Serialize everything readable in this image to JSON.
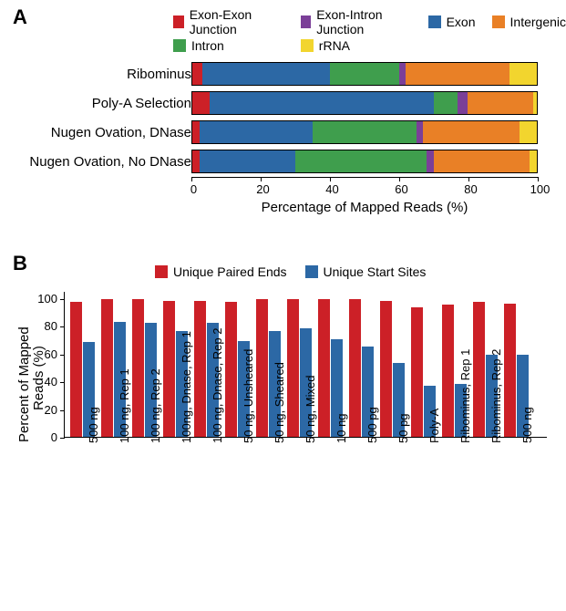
{
  "panelA": {
    "label": "A",
    "legend": [
      {
        "name": "Exon-Exon Junction",
        "color": "#cc2027"
      },
      {
        "name": "Exon-Intron Junction",
        "color": "#7b3f98"
      },
      {
        "name": "Exon",
        "color": "#2c68a5"
      },
      {
        "name": "Intergenic",
        "color": "#e98026"
      },
      {
        "name": "Intron",
        "color": "#3f9e4d"
      },
      {
        "name": "rRNA",
        "color": "#f2d52e"
      }
    ],
    "rows": [
      {
        "label": "Ribominus",
        "segments": [
          3,
          37,
          20,
          2,
          30,
          8
        ]
      },
      {
        "label": "Poly-A Selection",
        "segments": [
          5,
          65,
          7,
          3,
          19,
          1
        ]
      },
      {
        "label": "Nugen Ovation, DNase",
        "segments": [
          2,
          33,
          30,
          2,
          28,
          5
        ]
      },
      {
        "label": "Nugen Ovation, No DNase",
        "segments": [
          2,
          28,
          38,
          2,
          28,
          2
        ]
      }
    ],
    "xlabel": "Percentage of Mapped Reads (%)",
    "xticks": [
      0,
      20,
      40,
      60,
      80,
      100
    ],
    "colors": [
      "#cc2027",
      "#2c68a5",
      "#3f9e4d",
      "#7b3f98",
      "#e98026",
      "#f2d52e"
    ]
  },
  "panelB": {
    "label": "B",
    "legend": [
      {
        "name": "Unique Paired Ends",
        "color": "#cc2027"
      },
      {
        "name": "Unique Start Sites",
        "color": "#2c68a5"
      }
    ],
    "ylabel": "Percent of Mapped\nReads (%)",
    "yticks": [
      0,
      20,
      40,
      60,
      80,
      100
    ],
    "ymax": 105,
    "categories": [
      {
        "label": "500 ng",
        "upe": 97,
        "uss": 68
      },
      {
        "label": "100 ng, Rep 1",
        "upe": 99,
        "uss": 83
      },
      {
        "label": "100 ng, Rep 2",
        "upe": 99,
        "uss": 82
      },
      {
        "label": "100ng, Dnase, Rep 1",
        "upe": 98,
        "uss": 76
      },
      {
        "label": "100 ng, Dnase, Rep 2",
        "upe": 98,
        "uss": 82
      },
      {
        "label": "50 ng, Unsheared",
        "upe": 97,
        "uss": 69
      },
      {
        "label": "50 ng, Sheared",
        "upe": 99,
        "uss": 76
      },
      {
        "label": "50 ng, Mixed",
        "upe": 99,
        "uss": 78
      },
      {
        "label": "10 ng",
        "upe": 99,
        "uss": 70
      },
      {
        "label": "500 pg",
        "upe": 99,
        "uss": 65
      },
      {
        "label": "50 pg",
        "upe": 98,
        "uss": 53
      },
      {
        "label": "Poly-A",
        "upe": 93,
        "uss": 37
      },
      {
        "label": "Ribominus, Rep 1",
        "upe": 95,
        "uss": 38
      },
      {
        "label": "Ribominus, Rep 2",
        "upe": 97,
        "uss": 59
      },
      {
        "label": "500 ng",
        "upe": 96,
        "uss": 59
      }
    ]
  }
}
